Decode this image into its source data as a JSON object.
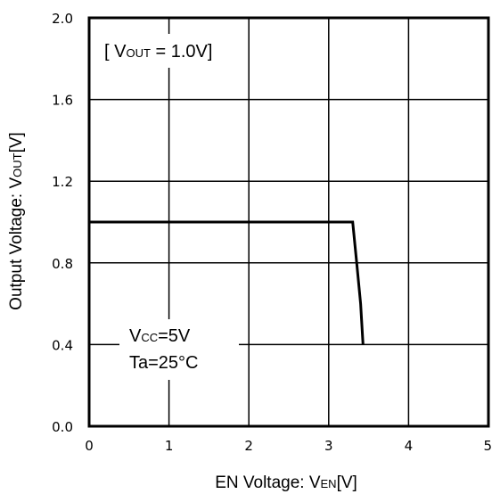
{
  "chart_data": {
    "type": "line",
    "xlabel": {
      "main": "EN Voltage: V",
      "sub": "EN",
      "tail": "[V]"
    },
    "ylabel": {
      "main": "Output Voltage: V",
      "sub": "OUT",
      "tail": "[V]"
    },
    "xlim": [
      0,
      5
    ],
    "ylim": [
      0.0,
      2.0
    ],
    "x_ticks": [
      "0",
      "1",
      "2",
      "3",
      "4",
      "5"
    ],
    "y_ticks": [
      "0.0",
      "0.4",
      "0.8",
      "1.2",
      "1.6",
      "2.0"
    ],
    "grid": true,
    "annotations": {
      "vout_label": {
        "open": "[ V",
        "sub": "OUT",
        "rest": " = 1.0V]"
      },
      "vcc_label": {
        "main": "V",
        "sub": "CC",
        "rest": "=5V"
      },
      "ta_label": "Ta=25°C"
    },
    "series": [
      {
        "x": [
          0.0,
          3.3,
          3.35,
          3.4,
          3.43
        ],
        "y": [
          1.0,
          1.0,
          0.8,
          0.6,
          0.4
        ],
        "color": "#000000"
      }
    ]
  }
}
